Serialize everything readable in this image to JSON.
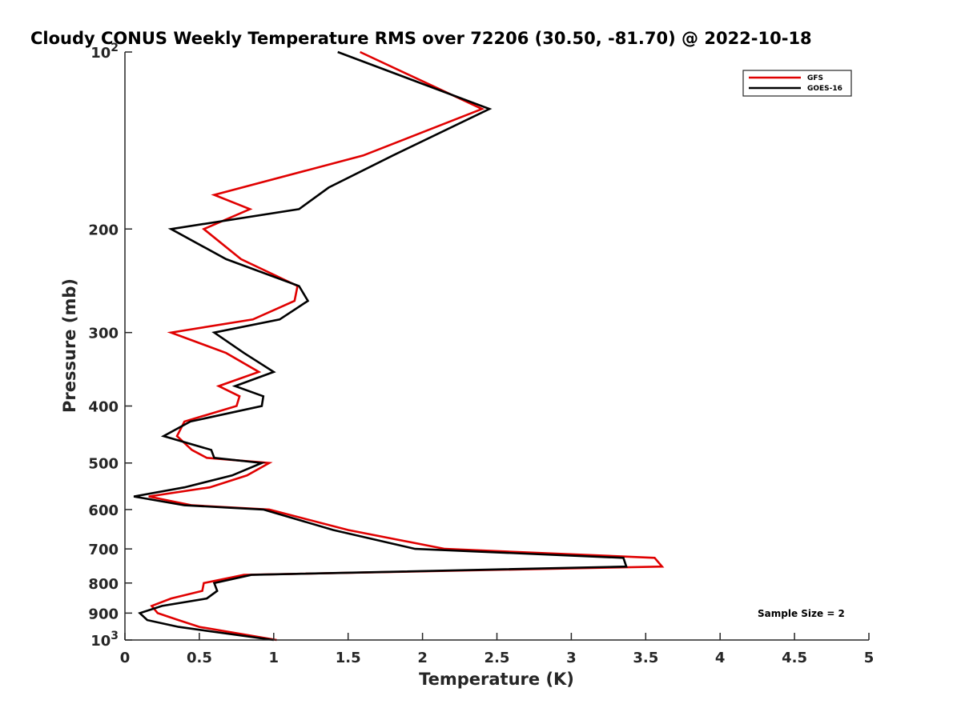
{
  "chart_data": {
    "type": "line",
    "title": "Cloudy CONUS Weekly Temperature RMS over 72206 (30.50, -81.70) @ 2022-10-18",
    "xlabel": "Temperature (K)",
    "ylabel": "Pressure (mb)",
    "xlim": [
      0,
      5
    ],
    "ylim": [
      100,
      1000
    ],
    "y_scale": "log",
    "y_reversed": true,
    "grid": false,
    "legend_position": "top-right",
    "x_ticks": [
      "0",
      "0.5",
      "1",
      "1.5",
      "2",
      "2.5",
      "3",
      "3.5",
      "4",
      "4.5",
      "5"
    ],
    "y_ticks": [
      {
        "value": 100,
        "base": "10",
        "exp": "2"
      },
      {
        "value": 200,
        "label": "200"
      },
      {
        "value": 300,
        "label": "300"
      },
      {
        "value": 400,
        "label": "400"
      },
      {
        "value": 500,
        "label": "500"
      },
      {
        "value": 600,
        "label": "600"
      },
      {
        "value": 700,
        "label": "700"
      },
      {
        "value": 800,
        "label": "800"
      },
      {
        "value": 900,
        "label": "900"
      },
      {
        "value": 1000,
        "base": "10",
        "exp": "3"
      }
    ],
    "annotation": "Sample Size = 2",
    "series": [
      {
        "name": "GFS",
        "color": "#e00000",
        "points": [
          [
            1.58,
            100
          ],
          [
            2.4,
            125
          ],
          [
            1.6,
            150
          ],
          [
            0.6,
            175
          ],
          [
            0.84,
            185
          ],
          [
            0.53,
            200
          ],
          [
            0.78,
            225
          ],
          [
            1.16,
            250
          ],
          [
            1.14,
            265
          ],
          [
            0.86,
            285
          ],
          [
            0.31,
            300
          ],
          [
            0.68,
            325
          ],
          [
            0.9,
            350
          ],
          [
            0.63,
            370
          ],
          [
            0.77,
            385
          ],
          [
            0.75,
            400
          ],
          [
            0.4,
            425
          ],
          [
            0.35,
            450
          ],
          [
            0.45,
            475
          ],
          [
            0.55,
            490
          ],
          [
            0.97,
            500
          ],
          [
            0.82,
            525
          ],
          [
            0.57,
            550
          ],
          [
            0.16,
            570
          ],
          [
            0.45,
            590
          ],
          [
            0.97,
            600
          ],
          [
            1.5,
            650
          ],
          [
            2.15,
            700
          ],
          [
            3.56,
            725
          ],
          [
            3.61,
            750
          ],
          [
            0.8,
            775
          ],
          [
            0.53,
            800
          ],
          [
            0.52,
            825
          ],
          [
            0.31,
            850
          ],
          [
            0.18,
            875
          ],
          [
            0.22,
            900
          ],
          [
            0.36,
            925
          ],
          [
            0.5,
            950
          ],
          [
            1.02,
            1000
          ]
        ]
      },
      {
        "name": "GOES-16",
        "color": "#000000",
        "points": [
          [
            1.43,
            100
          ],
          [
            2.45,
            125
          ],
          [
            1.8,
            150
          ],
          [
            1.37,
            170
          ],
          [
            1.17,
            185
          ],
          [
            0.31,
            200
          ],
          [
            0.68,
            225
          ],
          [
            1.17,
            250
          ],
          [
            1.23,
            265
          ],
          [
            1.04,
            285
          ],
          [
            0.6,
            300
          ],
          [
            0.8,
            325
          ],
          [
            1.0,
            350
          ],
          [
            0.74,
            370
          ],
          [
            0.93,
            385
          ],
          [
            0.92,
            400
          ],
          [
            0.44,
            425
          ],
          [
            0.26,
            450
          ],
          [
            0.58,
            475
          ],
          [
            0.6,
            490
          ],
          [
            0.92,
            500
          ],
          [
            0.72,
            525
          ],
          [
            0.4,
            550
          ],
          [
            0.06,
            570
          ],
          [
            0.4,
            590
          ],
          [
            0.93,
            600
          ],
          [
            1.4,
            650
          ],
          [
            1.95,
            700
          ],
          [
            3.35,
            725
          ],
          [
            3.37,
            750
          ],
          [
            0.85,
            775
          ],
          [
            0.6,
            800
          ],
          [
            0.62,
            825
          ],
          [
            0.55,
            850
          ],
          [
            0.25,
            875
          ],
          [
            0.1,
            900
          ],
          [
            0.15,
            925
          ],
          [
            0.36,
            950
          ],
          [
            1.0,
            1000
          ]
        ]
      }
    ]
  }
}
